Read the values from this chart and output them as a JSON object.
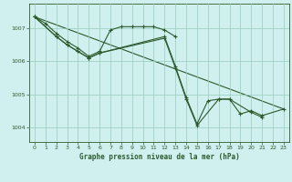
{
  "title": "Graphe pression niveau de la mer (hPa)",
  "bg_color": "#cff0ee",
  "grid_color": "#99ccbb",
  "line_color": "#2d5a2d",
  "xlim": [
    -0.5,
    23.5
  ],
  "ylim": [
    1003.55,
    1007.75
  ],
  "yticks": [
    1004,
    1005,
    1006,
    1007
  ],
  "xticks": [
    0,
    1,
    2,
    3,
    4,
    5,
    6,
    7,
    8,
    9,
    10,
    11,
    12,
    13,
    14,
    15,
    16,
    17,
    18,
    19,
    20,
    21,
    22,
    23
  ],
  "line1_x": [
    0,
    1,
    2,
    3,
    4,
    5,
    6,
    7,
    8,
    9,
    10,
    11,
    12,
    13
  ],
  "line1_y": [
    1007.35,
    1007.15,
    1006.85,
    1006.6,
    1006.4,
    1006.15,
    1006.3,
    1006.95,
    1007.05,
    1007.05,
    1007.05,
    1007.05,
    1006.95,
    1006.75
  ],
  "line2_x": [
    0,
    2,
    3,
    4,
    5,
    6,
    12,
    13,
    14,
    15,
    16,
    17,
    18,
    19,
    20,
    21,
    23
  ],
  "line2_y": [
    1007.35,
    1006.75,
    1006.5,
    1006.3,
    1006.1,
    1006.25,
    1006.75,
    1005.85,
    1004.9,
    1004.1,
    1004.8,
    1004.85,
    1004.85,
    1004.4,
    1004.5,
    1004.35,
    1004.55
  ],
  "line3_x": [
    0,
    2,
    3,
    4,
    5,
    6,
    12,
    13,
    14,
    15,
    17,
    18,
    20,
    21
  ],
  "line3_y": [
    1007.35,
    1006.75,
    1006.5,
    1006.3,
    1006.1,
    1006.25,
    1006.7,
    1005.8,
    1004.85,
    1004.05,
    1004.85,
    1004.85,
    1004.45,
    1004.3
  ],
  "trend_x": [
    0,
    23
  ],
  "trend_y": [
    1007.35,
    1004.55
  ]
}
